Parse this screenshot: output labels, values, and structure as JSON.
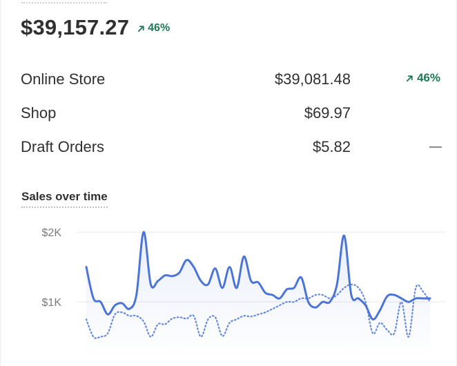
{
  "summary": {
    "total": "$39,157.27",
    "change": "46%"
  },
  "channels": [
    {
      "name": "Online Store",
      "value": "$39,081.48",
      "change": "46%"
    },
    {
      "name": "Shop",
      "value": "$69.97",
      "change": ""
    },
    {
      "name": "Draft Orders",
      "value": "$5.82",
      "change": ""
    }
  ],
  "chart_section": {
    "title": "Sales over time"
  },
  "colors": {
    "accent": "#4a74d8",
    "positive": "#1f7a56"
  },
  "chart_data": {
    "type": "line",
    "title": "Sales over time",
    "y_ticks": [
      "$2K",
      "$1K"
    ],
    "y_tick_values": [
      2000,
      1000
    ],
    "ylim": [
      200,
      2100
    ],
    "grid": true,
    "legend": "none",
    "series": [
      {
        "style": "solid",
        "values": [
          1500,
          1050,
          1000,
          820,
          950,
          980,
          900,
          1100,
          2000,
          1250,
          1300,
          1380,
          1370,
          1420,
          1600,
          1500,
          1300,
          1250,
          1480,
          1200,
          1500,
          1200,
          1650,
          1300,
          1280,
          1130,
          1100,
          1050,
          1180,
          1200,
          1350,
          1000,
          920,
          1000,
          1000,
          1250,
          1950,
          1100,
          1050,
          950,
          750,
          880,
          1080,
          1100,
          1050,
          1000,
          1050,
          1050,
          1050
        ]
      },
      {
        "style": "dotted",
        "values": [
          750,
          500,
          500,
          550,
          820,
          850,
          800,
          800,
          720,
          500,
          680,
          680,
          760,
          780,
          760,
          800,
          500,
          750,
          780,
          510,
          700,
          750,
          800,
          790,
          820,
          850,
          900,
          950,
          1000,
          1000,
          1050,
          1050,
          1100,
          1100,
          1050,
          1100,
          1200,
          1250,
          1200,
          1000,
          550,
          700,
          600,
          550,
          1000,
          500,
          1200,
          1150,
          1000
        ]
      }
    ]
  }
}
